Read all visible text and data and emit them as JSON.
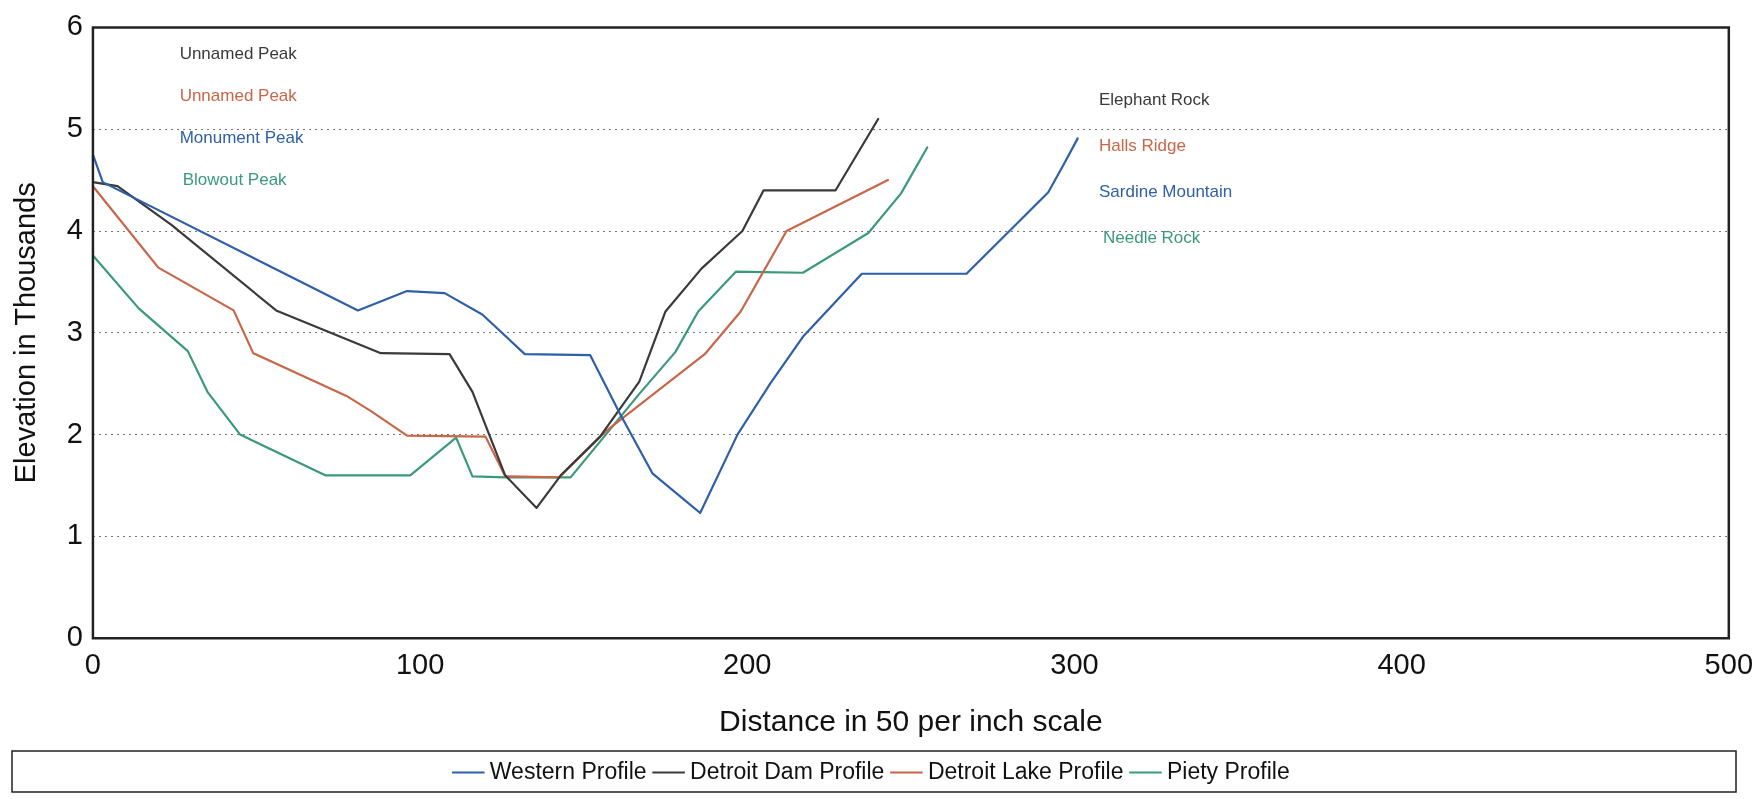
{
  "chart_data": {
    "type": "line",
    "xlabel": "Distance in 50 per inch scale",
    "ylabel": "Elevation in Thousands",
    "xlim": [
      0,
      500
    ],
    "xticks": [
      0,
      100,
      200,
      300,
      400,
      500
    ],
    "ylim": [
      0,
      6
    ],
    "yticks": [
      0,
      1,
      2,
      3,
      4,
      5,
      6
    ],
    "grid": "y",
    "legend": "bottom",
    "marker": "none",
    "line_style": "solid",
    "annotations": [
      "Unnamed Peak",
      "Unnamed Peak",
      "Monument Peak",
      "Blowout Peak",
      "Elephant Rock",
      "Halls Ridge",
      "Sardine Mountain",
      "Needle Rock"
    ],
    "series": [
      {
        "name": "Western Profile",
        "color": "#2e5fa8",
        "x": [
          0,
          3,
          81,
          96,
          107.5,
          119,
          132,
          152,
          161,
          171,
          185.6,
          197,
          207,
          217,
          235,
          267,
          292,
          297,
          301
        ],
        "values": [
          4.75,
          4.48,
          3.22,
          3.41,
          3.39,
          3.18,
          2.79,
          2.78,
          2.21,
          1.62,
          1.23,
          2.0,
          2.5,
          2.96,
          3.58,
          3.58,
          4.38,
          4.67,
          4.91
        ]
      },
      {
        "name": "Detroit Dam Profile",
        "color": "#3a3a3a",
        "x": [
          0,
          7.5,
          24,
          56,
          88,
          109,
          116,
          126,
          135.6,
          143,
          155,
          167,
          175,
          186,
          198.5,
          205,
          227,
          240
        ],
        "values": [
          4.48,
          4.44,
          4.06,
          3.22,
          2.8,
          2.79,
          2.42,
          1.6,
          1.28,
          1.6,
          1.98,
          2.52,
          3.21,
          3.63,
          4.0,
          4.4,
          4.4,
          5.1
        ]
      },
      {
        "name": "Detroit Lake Profile",
        "color": "#c8664a",
        "x": [
          0,
          20,
          43,
          49,
          77.5,
          85,
          96,
          120,
          126,
          142.5,
          157,
          187,
          198,
          212,
          243
        ],
        "values": [
          4.44,
          3.64,
          3.22,
          2.8,
          2.38,
          2.23,
          1.99,
          1.98,
          1.59,
          1.58,
          2.04,
          2.79,
          3.21,
          4.0,
          4.5
        ]
      },
      {
        "name": "Piety Profile",
        "color": "#3a9a78",
        "x": [
          0,
          14,
          29,
          35,
          45,
          71,
          97,
          111,
          116,
          126,
          146,
          167,
          178,
          185,
          196.5,
          217,
          237,
          247,
          255
        ],
        "values": [
          3.76,
          3.24,
          2.82,
          2.42,
          2.0,
          1.6,
          1.6,
          1.97,
          1.59,
          1.58,
          1.58,
          2.4,
          2.81,
          3.21,
          3.6,
          3.59,
          3.98,
          4.37,
          4.82
        ]
      }
    ]
  }
}
